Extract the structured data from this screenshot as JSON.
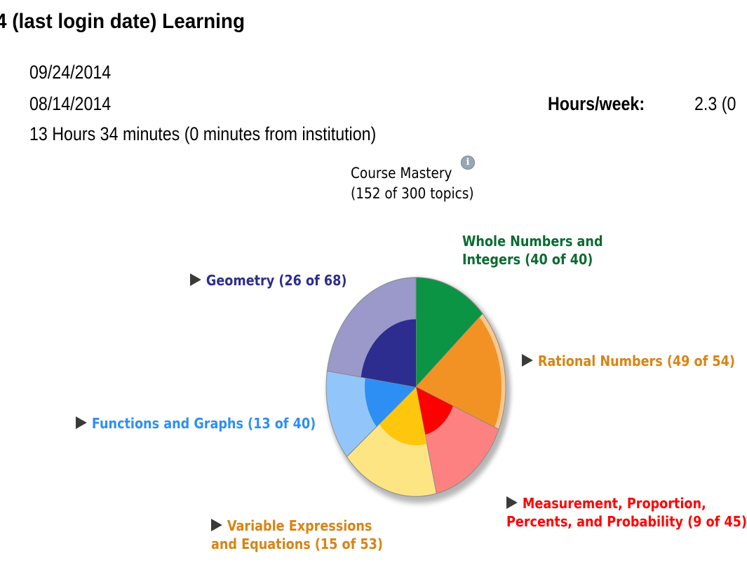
{
  "header": {
    "title": "4 (last login date) Learning"
  },
  "info": {
    "line1": "09/24/2014",
    "line2": "08/14/2014",
    "line3": "13 Hours 34 minutes (0 minutes from institution)",
    "hours_label": "Hours/week:",
    "hours_value": "2.3 (0"
  },
  "mastery": {
    "title": "Course Mastery",
    "subtitle": "(152 of 300 topics)",
    "info_icon": "info-icon",
    "info_glyph": "i"
  },
  "chart_data": {
    "type": "pie",
    "title": "Course Mastery",
    "subtitle": "(152 of 300 topics)",
    "total_mastered": 152,
    "total_topics": 300,
    "series": [
      {
        "name": "Whole Numbers and Integers",
        "mastered": 40,
        "total": 40,
        "color": "#0b9444",
        "mastered_color": "#0b9444",
        "line1": "Whole Numbers and",
        "line2": "Integers (40 of 40)"
      },
      {
        "name": "Rational Numbers",
        "mastered": 49,
        "total": 54,
        "color": "#fbc88d",
        "mastered_color": "#f39224",
        "line1": "Rational Numbers (49 of 54)",
        "line2": ""
      },
      {
        "name": "Measurement, Proportion, Percents, and Probability",
        "mastered": 9,
        "total": 45,
        "color": "#fd8181",
        "mastered_color": "#fe0000",
        "line1": "Measurement, Proportion,",
        "line2": "Percents, and Probability (9 of 45)"
      },
      {
        "name": "Variable Expressions and Equations",
        "mastered": 15,
        "total": 53,
        "color": "#fee584",
        "mastered_color": "#fec70e",
        "line1": "Variable Expressions",
        "line2": "and Equations (15 of 53)"
      },
      {
        "name": "Functions and Graphs",
        "mastered": 13,
        "total": 40,
        "color": "#92c6fa",
        "mastered_color": "#2d8ff4",
        "line1": "Functions and Graphs (13 of 40)",
        "line2": ""
      },
      {
        "name": "Geometry",
        "mastered": 26,
        "total": 68,
        "color": "#9a99c9",
        "mastered_color": "#2c2d8e",
        "line1": "Geometry (26 of 68)",
        "line2": ""
      }
    ],
    "label_colors": [
      "#0a6b32",
      "#d98314",
      "#fe0000",
      "#d98314",
      "#2d8ff4",
      "#2c2d8e"
    ]
  }
}
